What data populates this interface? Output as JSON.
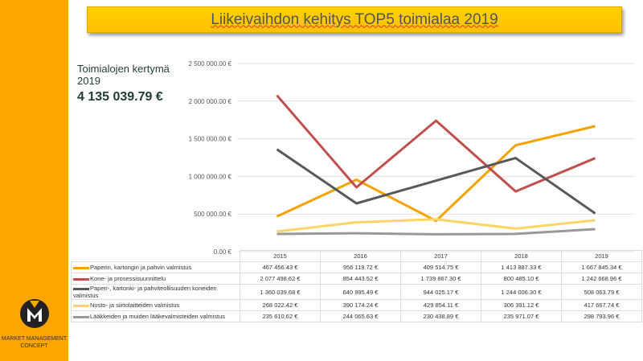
{
  "title": "Liikeivaihdon kehitys TOP5 toimialaa 2019",
  "kpi": {
    "label": "Toimialojen kertymä 2019",
    "value": "4 135 039.79 €"
  },
  "logo": {
    "text": "MARKET MANAGEMENT CONCEPT"
  },
  "chart_data": {
    "type": "line",
    "categories": [
      "2015",
      "2016",
      "2017",
      "2018",
      "2019"
    ],
    "ylim": [
      0,
      2500000
    ],
    "yticks": [
      "0.00 €",
      "500 000.00 €",
      "1 000 000.00 €",
      "1 500 000.00 €",
      "2 000 000.00 €",
      "2 500 000.00 €"
    ],
    "grid": true,
    "legend": "table-below",
    "series": [
      {
        "name": "Paperin, kartongin ja pahvin valmistus",
        "color": "#f5a200",
        "values": [
          467456.43,
          956119.72,
          409514.75,
          1413887.33,
          1667845.34
        ],
        "labels": [
          "467 456.43 €",
          "956 119.72 €",
          "409 514.75 €",
          "1 413 887.33 €",
          "1 667 845.34 €"
        ]
      },
      {
        "name": "Kone- ja prosessisuunnittelu",
        "color": "#c0504d",
        "values": [
          2077498.62,
          854443.52,
          1739867.3,
          800485.1,
          1242668.96
        ],
        "labels": [
          "2 077 498.62 €",
          "854 443.52 €",
          "1 739 867.30 €",
          "800 485.10 €",
          "1 242 668.96 €"
        ]
      },
      {
        "name": "Paperi-, kartonki- ja pahviteollisuuden koneiden valmistus",
        "color": "#595959",
        "values": [
          1360039.68,
          640995.49,
          944025.17,
          1244006.3,
          508063.79
        ],
        "labels": [
          "1 360 039.68 €",
          "640 995.49 €",
          "944 025.17 €",
          "1 244 006.30 €",
          "508 063.79 €"
        ]
      },
      {
        "name": "Nosto- ja siirtolaitteiden valmistus",
        "color": "#ffd466",
        "values": [
          268022.42,
          390174.24,
          429854.11,
          306391.12,
          417667.74
        ],
        "labels": [
          "268 022.42 €",
          "390 174.24 €",
          "429 854.11 €",
          "306 391.12 €",
          "417 667.74 €"
        ]
      },
      {
        "name": "Lääkkeiden ja muiden lääkevalmisteiden valmistus",
        "color": "#999999",
        "values": [
          235610.62,
          244065.63,
          230438.89,
          235971.07,
          298793.96
        ],
        "labels": [
          "235 610.62 €",
          "244 065.63 €",
          "230 438.89 €",
          "235 971.07 €",
          "298 793.96 €"
        ]
      }
    ]
  }
}
